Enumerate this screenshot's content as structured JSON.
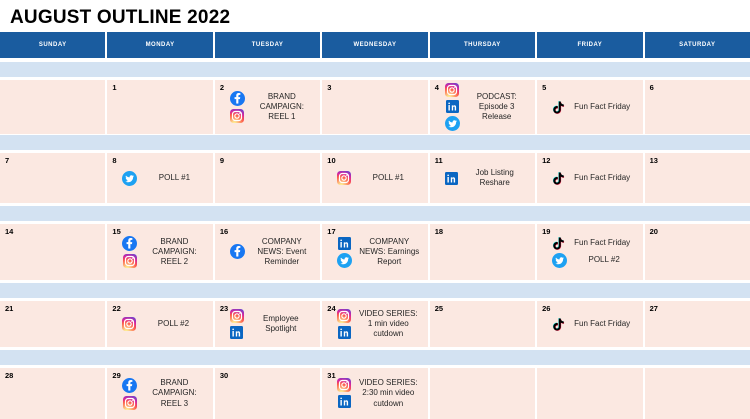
{
  "title": "AUGUST OUTLINE 2022",
  "colors": {
    "header_bg": "#1A5C9F",
    "band_bg": "#D3E2F2",
    "cell_bg": "#FBE8E1",
    "facebook": "#1877F2",
    "linkedin": "#0A66C2",
    "twitter": "#1DA1F2",
    "tiktok_black": "#010101",
    "tiktok_cyan": "#25F4EE",
    "tiktok_pink": "#FE2C55"
  },
  "weekdays": [
    "SUNDAY",
    "MONDAY",
    "TUESDAY",
    "WEDNESDAY",
    "THURSDAY",
    "FRIDAY",
    "SATURDAY"
  ],
  "weeks": [
    {
      "days": [
        {
          "num": "",
          "events": []
        },
        {
          "num": "1",
          "events": []
        },
        {
          "num": "2",
          "events": [
            {
              "icons": [
                "facebook",
                "instagram"
              ],
              "label": "BRAND CAMPAIGN: REEL 1"
            }
          ]
        },
        {
          "num": "3",
          "events": []
        },
        {
          "num": "4",
          "events": [
            {
              "icons": [
                "instagram",
                "linkedin",
                "twitter"
              ],
              "label": "PODCAST: Episode 3 Release"
            }
          ]
        },
        {
          "num": "5",
          "events": [
            {
              "icons": [
                "tiktok"
              ],
              "label": "Fun Fact Friday"
            }
          ]
        },
        {
          "num": "6",
          "events": []
        }
      ]
    },
    {
      "days": [
        {
          "num": "7",
          "events": []
        },
        {
          "num": "8",
          "events": [
            {
              "icons": [
                "twitter"
              ],
              "label": "POLL #1"
            }
          ]
        },
        {
          "num": "9",
          "events": []
        },
        {
          "num": "10",
          "events": [
            {
              "icons": [
                "instagram"
              ],
              "label": "POLL #1"
            }
          ]
        },
        {
          "num": "11",
          "events": [
            {
              "icons": [
                "linkedin"
              ],
              "label": "Job Listing Reshare"
            }
          ]
        },
        {
          "num": "12",
          "events": [
            {
              "icons": [
                "tiktok"
              ],
              "label": "Fun Fact Friday"
            }
          ]
        },
        {
          "num": "13",
          "events": []
        }
      ]
    },
    {
      "days": [
        {
          "num": "14",
          "events": []
        },
        {
          "num": "15",
          "events": [
            {
              "icons": [
                "facebook",
                "instagram"
              ],
              "label": "BRAND CAMPAIGN: REEL 2"
            }
          ]
        },
        {
          "num": "16",
          "events": [
            {
              "icons": [
                "facebook"
              ],
              "label": "COMPANY NEWS: Event Reminder"
            }
          ]
        },
        {
          "num": "17",
          "events": [
            {
              "icons": [
                "linkedin",
                "twitter"
              ],
              "label": "COMPANY NEWS: Earnings Report"
            }
          ]
        },
        {
          "num": "18",
          "events": []
        },
        {
          "num": "19",
          "events": [
            {
              "icons": [
                "tiktok"
              ],
              "label": "Fun Fact Friday"
            },
            {
              "icons": [
                "twitter"
              ],
              "label": "POLL #2"
            }
          ]
        },
        {
          "num": "20",
          "events": []
        }
      ]
    },
    {
      "days": [
        {
          "num": "21",
          "events": []
        },
        {
          "num": "22",
          "events": [
            {
              "icons": [
                "instagram"
              ],
              "label": "POLL #2"
            }
          ]
        },
        {
          "num": "23",
          "events": [
            {
              "icons": [
                "instagram",
                "linkedin"
              ],
              "label": "Employee Spotlight"
            }
          ]
        },
        {
          "num": "24",
          "events": [
            {
              "icons": [
                "instagram",
                "linkedin"
              ],
              "label": "VIDEO SERIES: 1 min video cutdown"
            }
          ]
        },
        {
          "num": "25",
          "events": []
        },
        {
          "num": "26",
          "events": [
            {
              "icons": [
                "tiktok"
              ],
              "label": "Fun Fact Friday"
            }
          ]
        },
        {
          "num": "27",
          "events": []
        }
      ]
    },
    {
      "days": [
        {
          "num": "28",
          "events": []
        },
        {
          "num": "29",
          "events": [
            {
              "icons": [
                "facebook",
                "instagram"
              ],
              "label": "BRAND CAMPAIGN: REEL 3"
            }
          ]
        },
        {
          "num": "30",
          "events": []
        },
        {
          "num": "31",
          "events": [
            {
              "icons": [
                "instagram",
                "linkedin"
              ],
              "label": "VIDEO SERIES: 2:30 min video cutdown"
            }
          ]
        },
        {
          "num": "",
          "events": []
        },
        {
          "num": "",
          "events": []
        },
        {
          "num": "",
          "events": []
        }
      ]
    }
  ]
}
